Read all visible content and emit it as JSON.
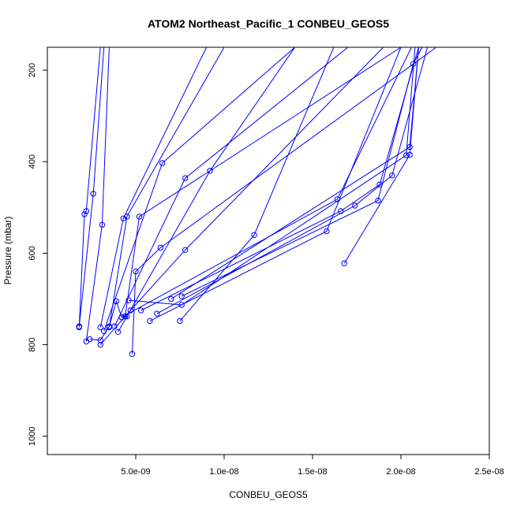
{
  "chart_data": {
    "type": "line",
    "title": "ATOM2 Northeast_Pacific_1 CONBEU_GEOS5",
    "xlabel": "CONBEU_GEOS5",
    "ylabel": "Pressure (mbar)",
    "xlim": [
      0.0,
      2.5e-08
    ],
    "ylim": [
      1040,
      150
    ],
    "y_reversed": true,
    "grid": false,
    "marker": "open-circle",
    "series_color": "#0000ff",
    "x_ticks": [
      5e-09,
      1e-08,
      1.5e-08,
      2e-08,
      2.5e-08
    ],
    "x_tick_labels": [
      "5.0e-09",
      "1.0e-08",
      "1.5e-08",
      "2.0e-08",
      "2.5e-08"
    ],
    "y_ticks": [
      200,
      400,
      600,
      800,
      1000
    ],
    "y_tick_labels": [
      "200",
      "400",
      "600",
      "800",
      "1000"
    ],
    "profiles": [
      [
        [
          1.8e-09,
          762
        ],
        [
          2.1e-09,
          515
        ],
        [
          2.2e-09,
          508
        ],
        [
          3e-09,
          150
        ]
      ],
      [
        [
          1.8e-09,
          760
        ],
        [
          2.6e-09,
          470
        ],
        [
          3.2e-09,
          150
        ]
      ],
      [
        [
          2.2e-09,
          793
        ],
        [
          3.1e-09,
          538
        ],
        [
          3.5e-09,
          150
        ]
      ],
      [
        [
          3e-09,
          762
        ],
        [
          4.3e-09,
          524
        ],
        [
          9e-09,
          150
        ]
      ],
      [
        [
          3.5e-09,
          762
        ],
        [
          4.5e-09,
          520
        ],
        [
          1e-08,
          150
        ]
      ],
      [
        [
          3.2e-09,
          770
        ],
        [
          6.5e-09,
          403
        ],
        [
          1.4e-08,
          150
        ]
      ],
      [
        [
          3.8e-09,
          760
        ],
        [
          7.8e-09,
          436
        ],
        [
          1.7e-08,
          150
        ]
      ],
      [
        [
          4e-09,
          772
        ],
        [
          9.2e-09,
          420
        ],
        [
          1.4e-08,
          150
        ]
      ],
      [
        [
          4.4e-09,
          738
        ],
        [
          5.2e-09,
          520
        ],
        [
          2e-08,
          150
        ]
      ],
      [
        [
          4.8e-09,
          820
        ],
        [
          5e-09,
          640
        ],
        [
          6.4e-09,
          588
        ],
        [
          2.2e-08,
          150
        ]
      ],
      [
        [
          3e-09,
          800
        ],
        [
          4.7e-09,
          725
        ],
        [
          7.8e-09,
          593
        ],
        [
          1.9e-08,
          150
        ]
      ],
      [
        [
          7.5e-09,
          748
        ],
        [
          1.17e-08,
          560
        ],
        [
          1.62e-08,
          150
        ]
      ],
      [
        [
          4.2e-09,
          740
        ],
        [
          1.64e-08,
          482
        ],
        [
          2.06e-08,
          150
        ]
      ],
      [
        [
          5.3e-09,
          725
        ],
        [
          1.66e-08,
          508
        ],
        [
          1.88e-08,
          450
        ],
        [
          2.1e-08,
          150
        ]
      ],
      [
        [
          5.8e-09,
          748
        ],
        [
          1.58e-08,
          552
        ],
        [
          2e-08,
          150
        ]
      ],
      [
        [
          6.2e-09,
          732
        ],
        [
          1.74e-08,
          496
        ],
        [
          1.95e-08,
          430
        ],
        [
          2.15e-08,
          150
        ]
      ],
      [
        [
          7.6e-09,
          694
        ],
        [
          1.87e-08,
          485
        ],
        [
          2.07e-08,
          186
        ],
        [
          2.12e-08,
          150
        ]
      ],
      [
        [
          7e-09,
          700
        ],
        [
          2.05e-08,
          368
        ],
        [
          2.1e-08,
          150
        ]
      ],
      [
        [
          4.6e-09,
          703
        ],
        [
          7.6e-09,
          713
        ],
        [
          2.03e-08,
          386
        ],
        [
          2.08e-08,
          150
        ]
      ],
      [
        [
          1.68e-08,
          622
        ],
        [
          2.05e-08,
          385
        ],
        [
          2.1e-08,
          150
        ]
      ],
      [
        [
          2.4e-09,
          788
        ],
        [
          3e-09,
          790
        ],
        [
          3.5e-09,
          760
        ],
        [
          3.9e-09,
          705
        ],
        [
          4.2e-09,
          740
        ],
        [
          4.5e-09,
          738
        ]
      ]
    ]
  }
}
